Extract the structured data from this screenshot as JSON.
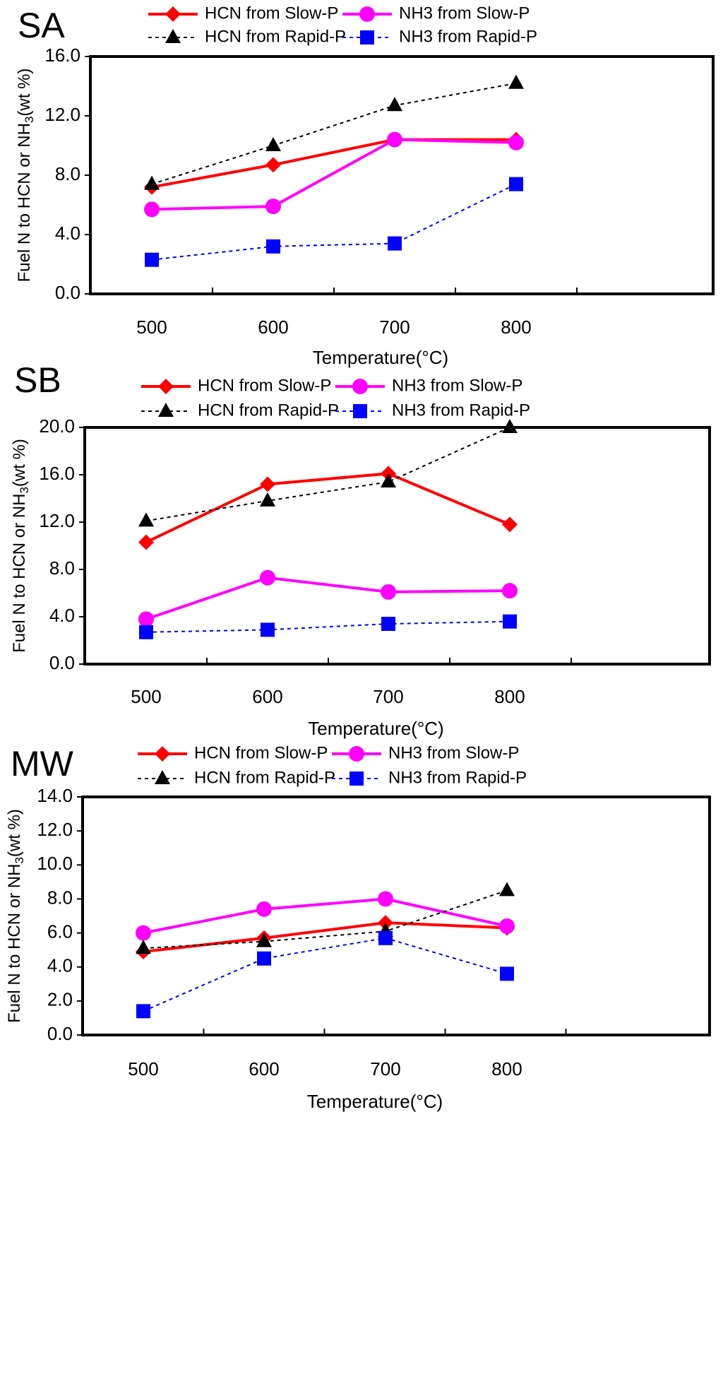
{
  "figure": {
    "chart_data": [
      {
        "type": "line",
        "panel_label": "SA",
        "xlabel": "Temperature(°C)",
        "ylabel_main": "Fuel N to HCN or NH",
        "ylabel_sub": "3",
        "ylabel_tail": "(wt %)",
        "categories": [
          "500",
          "600",
          "700",
          "800"
        ],
        "ylim": [
          0,
          16
        ],
        "yticks": [
          "0.0",
          "4.0",
          "8.0",
          "12.0",
          "16.0"
        ],
        "series": [
          {
            "name": "HCN from Slow-P",
            "values": [
              7.2,
              8.7,
              10.4,
              10.4
            ],
            "color": "#ff0000",
            "marker": "diamond",
            "dash": "solid"
          },
          {
            "name": "NH3 from Slow-P",
            "values": [
              5.7,
              5.9,
              10.4,
              10.2
            ],
            "color": "#ff00ff",
            "marker": "circle",
            "dash": "solid"
          },
          {
            "name": "HCN from Rapid-P",
            "values": [
              7.4,
              10.0,
              12.7,
              14.2
            ],
            "color": "#000000",
            "marker": "triangle",
            "dash": "dotted"
          },
          {
            "name": "NH3 from Rapid-P",
            "values": [
              2.3,
              3.2,
              3.4,
              7.4
            ],
            "color": "#0000ff",
            "marker": "square",
            "dash": "dotted"
          }
        ]
      },
      {
        "type": "line",
        "panel_label": "SB",
        "xlabel": "Temperature(°C)",
        "ylabel_main": "Fuel N to HCN or NH",
        "ylabel_sub": "3",
        "ylabel_tail": "(wt %)",
        "categories": [
          "500",
          "600",
          "700",
          "800"
        ],
        "ylim": [
          0,
          20
        ],
        "yticks": [
          "0.0",
          "4.0",
          "8.0",
          "12.0",
          "16.0",
          "20.0"
        ],
        "series": [
          {
            "name": "HCN from Slow-P",
            "values": [
              10.3,
              15.2,
              16.1,
              11.8
            ],
            "color": "#ff0000",
            "marker": "diamond",
            "dash": "solid"
          },
          {
            "name": "NH3 from Slow-P",
            "values": [
              3.8,
              7.3,
              6.1,
              6.2
            ],
            "color": "#ff00ff",
            "marker": "circle",
            "dash": "solid"
          },
          {
            "name": "HCN from Rapid-P",
            "values": [
              12.1,
              13.8,
              15.4,
              20.0
            ],
            "color": "#000000",
            "marker": "triangle",
            "dash": "dotted"
          },
          {
            "name": "NH3 from Rapid-P",
            "values": [
              2.7,
              2.9,
              3.4,
              3.6
            ],
            "color": "#0000ff",
            "marker": "square",
            "dash": "dotted"
          }
        ]
      },
      {
        "type": "line",
        "panel_label": "MW",
        "xlabel": "Temperature(°C)",
        "ylabel_main": "Fuel N to HCN or NH",
        "ylabel_sub": "3",
        "ylabel_tail": "(wt %)",
        "categories": [
          "500",
          "600",
          "700",
          "800"
        ],
        "ylim": [
          0,
          14
        ],
        "yticks": [
          "0.0",
          "2.0",
          "4.0",
          "6.0",
          "8.0",
          "10.0",
          "12.0",
          "14.0"
        ],
        "series": [
          {
            "name": "HCN from Slow-P",
            "values": [
              4.9,
              5.7,
              6.6,
              6.3
            ],
            "color": "#ff0000",
            "marker": "diamond",
            "dash": "solid"
          },
          {
            "name": "NH3 from Slow-P",
            "values": [
              6.0,
              7.4,
              8.0,
              6.4
            ],
            "color": "#ff00ff",
            "marker": "circle",
            "dash": "solid"
          },
          {
            "name": "HCN from Rapid-P",
            "values": [
              5.1,
              5.5,
              6.1,
              8.5
            ],
            "color": "#000000",
            "marker": "triangle",
            "dash": "dotted"
          },
          {
            "name": "NH3 from Rapid-P",
            "values": [
              1.4,
              4.5,
              5.7,
              3.6
            ],
            "color": "#0000ff",
            "marker": "square",
            "dash": "dotted"
          }
        ]
      }
    ]
  }
}
